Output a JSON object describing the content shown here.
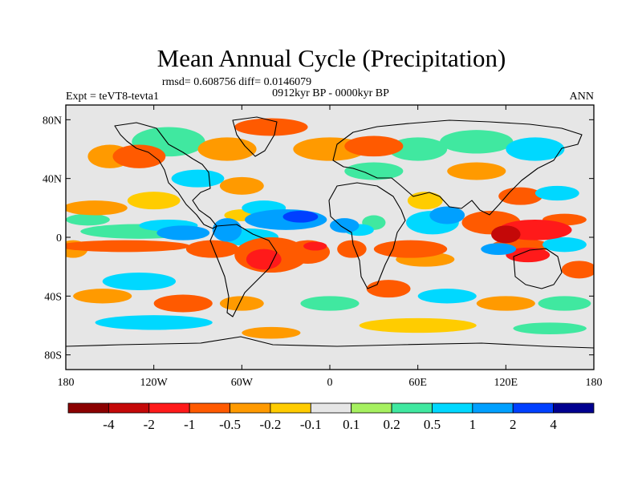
{
  "chart_data": {
    "type": "heatmap",
    "title": "Mean Annual Cycle (Precipitation)",
    "stats_line": "rmsd= 0.608756  diff= 0.0146079",
    "period_line": "0912kyr BP - 0000kyr BP",
    "left_label": "Expt = teVT8-tevta1",
    "right_label": "ANN",
    "lon_range": [
      -180,
      180
    ],
    "lat_range": [
      -90,
      90
    ],
    "y_ticks": [
      {
        "value": 80,
        "label": "80N"
      },
      {
        "value": 40,
        "label": "40N"
      },
      {
        "value": 0,
        "label": "0"
      },
      {
        "value": -40,
        "label": "40S"
      },
      {
        "value": -80,
        "label": "80S"
      }
    ],
    "x_ticks": [
      {
        "value": -180,
        "label": "180"
      },
      {
        "value": -120,
        "label": "120W"
      },
      {
        "value": -60,
        "label": "60W"
      },
      {
        "value": 0,
        "label": "0"
      },
      {
        "value": 60,
        "label": "60E"
      },
      {
        "value": 120,
        "label": "120E"
      },
      {
        "value": 180,
        "label": "180"
      }
    ],
    "colorbar": {
      "colors": [
        "#8b0000",
        "#c40808",
        "#ff1a1a",
        "#ff5a00",
        "#ff9a00",
        "#ffcc00",
        "#e6e6e6",
        "#a6f060",
        "#40e8a0",
        "#00d8ff",
        "#00a0ff",
        "#0040ff",
        "#000090"
      ],
      "levels": [
        "-4",
        "-2",
        "-1",
        "-0.5",
        "-0.2",
        "-0.1",
        "0.1",
        "0.2",
        "0.5",
        "1",
        "2",
        "4"
      ]
    },
    "anomaly_blobs": [
      {
        "lon": -175,
        "lat": -8,
        "rx": 10,
        "ry": 6,
        "level": 4
      },
      {
        "lon": -140,
        "lat": -6,
        "rx": 45,
        "ry": 4,
        "level": 3
      },
      {
        "lon": -130,
        "lat": 4,
        "rx": 40,
        "ry": 5,
        "level": 8
      },
      {
        "lon": -110,
        "lat": 8,
        "rx": 20,
        "ry": 4,
        "level": 9
      },
      {
        "lon": -165,
        "lat": 12,
        "rx": 15,
        "ry": 4,
        "level": 8
      },
      {
        "lon": -160,
        "lat": 20,
        "rx": 22,
        "ry": 5,
        "level": 4
      },
      {
        "lon": -120,
        "lat": 25,
        "rx": 18,
        "ry": 6,
        "level": 5
      },
      {
        "lon": -100,
        "lat": 3,
        "rx": 18,
        "ry": 5,
        "level": 10
      },
      {
        "lon": -70,
        "lat": 5,
        "rx": 10,
        "ry": 8,
        "level": 10
      },
      {
        "lon": -55,
        "lat": 0,
        "rx": 20,
        "ry": 6,
        "level": 9
      },
      {
        "lon": -80,
        "lat": -8,
        "rx": 18,
        "ry": 6,
        "level": 3
      },
      {
        "lon": -40,
        "lat": -12,
        "rx": 25,
        "ry": 12,
        "level": 3
      },
      {
        "lon": -45,
        "lat": -15,
        "rx": 12,
        "ry": 7,
        "level": 2
      },
      {
        "lon": -15,
        "lat": -10,
        "rx": 15,
        "ry": 8,
        "level": 3
      },
      {
        "lon": -10,
        "lat": -6,
        "rx": 8,
        "ry": 3,
        "level": 2
      },
      {
        "lon": -30,
        "lat": 12,
        "rx": 28,
        "ry": 7,
        "level": 10
      },
      {
        "lon": -20,
        "lat": 14,
        "rx": 12,
        "ry": 4,
        "level": 11
      },
      {
        "lon": -45,
        "lat": 20,
        "rx": 15,
        "ry": 5,
        "level": 9
      },
      {
        "lon": -60,
        "lat": 15,
        "rx": 12,
        "ry": 4,
        "level": 5
      },
      {
        "lon": 10,
        "lat": 8,
        "rx": 10,
        "ry": 5,
        "level": 10
      },
      {
        "lon": 20,
        "lat": 5,
        "rx": 10,
        "ry": 4,
        "level": 9
      },
      {
        "lon": 30,
        "lat": 10,
        "rx": 8,
        "ry": 5,
        "level": 8
      },
      {
        "lon": 15,
        "lat": -8,
        "rx": 10,
        "ry": 6,
        "level": 3
      },
      {
        "lon": 55,
        "lat": -8,
        "rx": 25,
        "ry": 6,
        "level": 3
      },
      {
        "lon": 65,
        "lat": -15,
        "rx": 20,
        "ry": 5,
        "level": 4
      },
      {
        "lon": 70,
        "lat": 10,
        "rx": 18,
        "ry": 8,
        "level": 9
      },
      {
        "lon": 80,
        "lat": 15,
        "rx": 12,
        "ry": 6,
        "level": 10
      },
      {
        "lon": 65,
        "lat": 25,
        "rx": 12,
        "ry": 6,
        "level": 5
      },
      {
        "lon": 110,
        "lat": 10,
        "rx": 20,
        "ry": 8,
        "level": 3
      },
      {
        "lon": 140,
        "lat": 5,
        "rx": 25,
        "ry": 7,
        "level": 2
      },
      {
        "lon": 120,
        "lat": 2,
        "rx": 10,
        "ry": 6,
        "level": 1
      },
      {
        "lon": 160,
        "lat": 12,
        "rx": 15,
        "ry": 4,
        "level": 3
      },
      {
        "lon": 130,
        "lat": -6,
        "rx": 20,
        "ry": 5,
        "level": 3
      },
      {
        "lon": 135,
        "lat": -12,
        "rx": 15,
        "ry": 5,
        "level": 2
      },
      {
        "lon": 115,
        "lat": -8,
        "rx": 12,
        "ry": 4,
        "level": 10
      },
      {
        "lon": 130,
        "lat": 28,
        "rx": 15,
        "ry": 6,
        "level": 3
      },
      {
        "lon": 155,
        "lat": 30,
        "rx": 15,
        "ry": 5,
        "level": 9
      },
      {
        "lon": 160,
        "lat": -5,
        "rx": 15,
        "ry": 5,
        "level": 9
      },
      {
        "lon": 170,
        "lat": -22,
        "rx": 12,
        "ry": 6,
        "level": 3
      },
      {
        "lon": -130,
        "lat": 55,
        "rx": 18,
        "ry": 8,
        "level": 3
      },
      {
        "lon": -150,
        "lat": 55,
        "rx": 15,
        "ry": 8,
        "level": 4
      },
      {
        "lon": -110,
        "lat": 65,
        "rx": 25,
        "ry": 10,
        "level": 8
      },
      {
        "lon": -70,
        "lat": 60,
        "rx": 20,
        "ry": 8,
        "level": 4
      },
      {
        "lon": -40,
        "lat": 75,
        "rx": 25,
        "ry": 6,
        "level": 3
      },
      {
        "lon": 0,
        "lat": 60,
        "rx": 25,
        "ry": 8,
        "level": 4
      },
      {
        "lon": 30,
        "lat": 62,
        "rx": 20,
        "ry": 7,
        "level": 3
      },
      {
        "lon": 60,
        "lat": 60,
        "rx": 20,
        "ry": 8,
        "level": 8
      },
      {
        "lon": 100,
        "lat": 65,
        "rx": 25,
        "ry": 8,
        "level": 8
      },
      {
        "lon": 140,
        "lat": 60,
        "rx": 20,
        "ry": 8,
        "level": 9
      },
      {
        "lon": -90,
        "lat": 40,
        "rx": 18,
        "ry": 6,
        "level": 9
      },
      {
        "lon": -60,
        "lat": 35,
        "rx": 15,
        "ry": 6,
        "level": 4
      },
      {
        "lon": 30,
        "lat": 45,
        "rx": 20,
        "ry": 6,
        "level": 8
      },
      {
        "lon": 100,
        "lat": 45,
        "rx": 20,
        "ry": 6,
        "level": 4
      },
      {
        "lon": -130,
        "lat": -30,
        "rx": 25,
        "ry": 6,
        "level": 9
      },
      {
        "lon": -155,
        "lat": -40,
        "rx": 20,
        "ry": 5,
        "level": 4
      },
      {
        "lon": -100,
        "lat": -45,
        "rx": 20,
        "ry": 6,
        "level": 3
      },
      {
        "lon": -60,
        "lat": -45,
        "rx": 15,
        "ry": 5,
        "level": 4
      },
      {
        "lon": 0,
        "lat": -45,
        "rx": 20,
        "ry": 5,
        "level": 8
      },
      {
        "lon": 40,
        "lat": -35,
        "rx": 15,
        "ry": 6,
        "level": 3
      },
      {
        "lon": 80,
        "lat": -40,
        "rx": 20,
        "ry": 5,
        "level": 9
      },
      {
        "lon": 120,
        "lat": -45,
        "rx": 20,
        "ry": 5,
        "level": 4
      },
      {
        "lon": 160,
        "lat": -45,
        "rx": 18,
        "ry": 5,
        "level": 8
      },
      {
        "lon": -120,
        "lat": -58,
        "rx": 40,
        "ry": 5,
        "level": 9
      },
      {
        "lon": 60,
        "lat": -60,
        "rx": 40,
        "ry": 5,
        "level": 5
      },
      {
        "lon": -40,
        "lat": -65,
        "rx": 20,
        "ry": 4,
        "level": 4
      },
      {
        "lon": 150,
        "lat": -62,
        "rx": 25,
        "ry": 4,
        "level": 8
      }
    ]
  }
}
